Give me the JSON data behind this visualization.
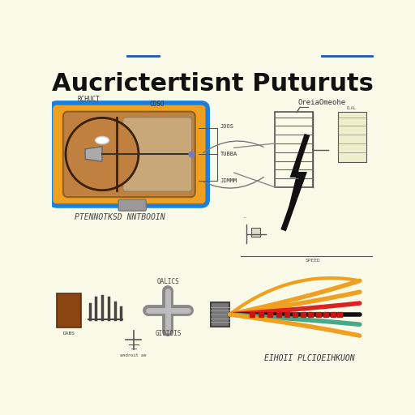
{
  "background_color": "#FAFAE8",
  "title": "Aucrictertisnt Puturuts",
  "title_fontsize": 22,
  "title_color": "#111111",
  "inductor_body_color": "#F0A020",
  "inductor_border_color": "#1A7FDD",
  "inductor_core_color": "#C08040",
  "inductor_core_light": "#C8A878",
  "label_top_left": "RCHUCT",
  "label_top_right": "COSO",
  "label_mid_right1": "JOOS",
  "label_mid_right2": "TUBBA",
  "label_mid_right3": "JIMMM",
  "label_bottom_left": "PTENNOTKSD NNTBOOIN",
  "right_diagram_label": "OreiaOmeohe",
  "right_bottom_label": "SPEED",
  "bottom_left_label": "DABS",
  "bottom_mid_label": "OALICS",
  "bottom_mid_label2": "GIOIOIS",
  "bottom_right_label": "EIHOII PLCIOEIHKUON",
  "bottom_part_label2": "androit ae",
  "wire_colors": [
    "#F0A020",
    "#F0A020",
    "#DD2222",
    "#111111",
    "#44AA88",
    "#F0A020"
  ],
  "bolt_color": "#111111",
  "underline_color1": "#2255BB",
  "underline_color2": "#2255BB"
}
